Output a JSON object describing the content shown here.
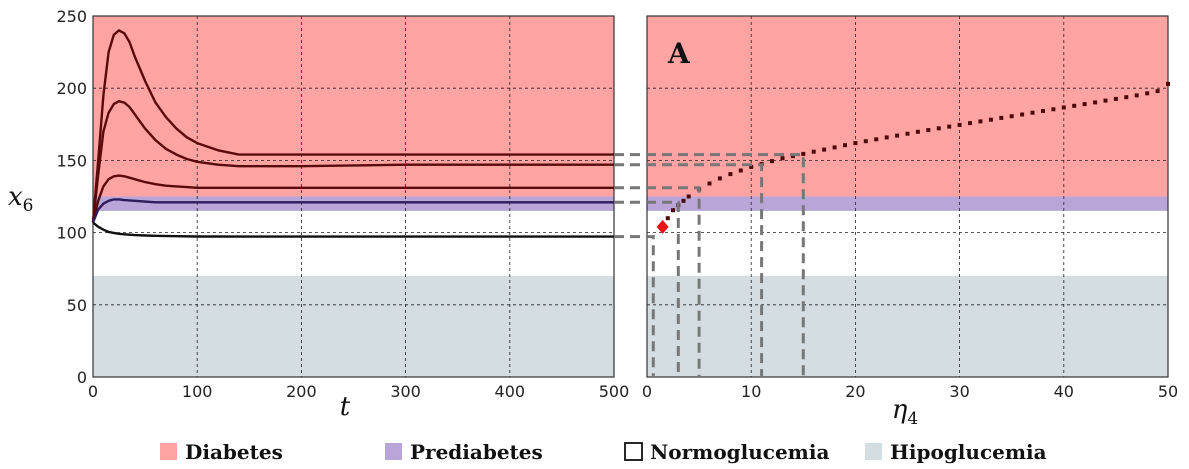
{
  "legend": [
    {
      "label": "Diabetes",
      "color": "#ffa3a3"
    },
    {
      "label": "Prediabetes",
      "color": "#b9a5d8"
    },
    {
      "label": "Normoglucemia",
      "color": "#ffffff"
    },
    {
      "label": "Hipoglucemia",
      "color": "#d3dde2"
    }
  ],
  "chart_data": [
    {
      "type": "line",
      "panel": "left",
      "xlabel": "t",
      "ylabel": "x6",
      "xlim": [
        0,
        500
      ],
      "ylim": [
        0,
        250
      ],
      "x_ticks": [
        0,
        100,
        200,
        300,
        400,
        500
      ],
      "y_ticks": [
        0,
        50,
        100,
        150,
        200,
        250
      ],
      "grid": true,
      "regions": [
        {
          "name": "Diabetes",
          "from": 125,
          "to": 250,
          "color": "#ffa3a3"
        },
        {
          "name": "Prediabetes",
          "from": 115,
          "to": 125,
          "color": "#b9a5d8"
        },
        {
          "name": "Normoglucemia",
          "from": 70,
          "to": 115,
          "color": "#ffffff"
        },
        {
          "name": "Hipoglucemia",
          "from": 0,
          "to": 70,
          "color": "#d3dde2"
        }
      ],
      "series": [
        {
          "color": "#5a0a0a",
          "x": [
            0,
            5,
            10,
            15,
            20,
            25,
            30,
            35,
            40,
            50,
            60,
            70,
            80,
            90,
            100,
            120,
            140,
            200,
            300,
            400,
            500
          ],
          "values": [
            107,
            150,
            195,
            225,
            237,
            240,
            238,
            232,
            222,
            205,
            190,
            180,
            172,
            166,
            162,
            157,
            154,
            154,
            154,
            154,
            154
          ]
        },
        {
          "color": "#5a0a0a",
          "x": [
            0,
            5,
            10,
            15,
            20,
            25,
            30,
            35,
            40,
            50,
            60,
            70,
            80,
            90,
            100,
            120,
            140,
            200,
            300,
            400,
            500
          ],
          "values": [
            107,
            140,
            170,
            183,
            189,
            191,
            190,
            187,
            182,
            172,
            164,
            158,
            154,
            151,
            149,
            147,
            146,
            146,
            147,
            147,
            147
          ]
        },
        {
          "color": "#5a0a0a",
          "x": [
            0,
            5,
            10,
            15,
            20,
            25,
            30,
            35,
            40,
            50,
            60,
            70,
            80,
            90,
            100,
            120,
            140,
            200,
            300,
            400,
            500
          ],
          "values": [
            107,
            122,
            132,
            137,
            139,
            139.5,
            139,
            138,
            137,
            135,
            133.5,
            132.5,
            132,
            131.5,
            131,
            131,
            131,
            131,
            131,
            131,
            131
          ]
        },
        {
          "color": "#2e1c5c",
          "x": [
            0,
            5,
            10,
            15,
            20,
            25,
            30,
            40,
            50,
            60,
            80,
            100,
            150,
            200,
            300,
            400,
            500
          ],
          "values": [
            107,
            116,
            120,
            122,
            123,
            123,
            122.5,
            122,
            121.5,
            121,
            121,
            121,
            121,
            121,
            121,
            121,
            121
          ]
        },
        {
          "color": "#111111",
          "x": [
            0,
            5,
            10,
            15,
            20,
            25,
            30,
            40,
            50,
            60,
            80,
            100,
            150,
            200,
            300,
            400,
            500
          ],
          "values": [
            107,
            104,
            102,
            100.5,
            99.8,
            99.2,
            98.8,
            98.3,
            98,
            97.8,
            97.5,
            97.3,
            97.2,
            97.2,
            97.2,
            97.2,
            97.2
          ]
        }
      ]
    },
    {
      "type": "scatter",
      "panel": "right",
      "panel_label": "A",
      "xlabel": "η4",
      "xlim": [
        0,
        50
      ],
      "ylim": [
        0,
        250
      ],
      "x_ticks": [
        0,
        10,
        20,
        30,
        40,
        50
      ],
      "y_ticks": [
        0,
        50,
        100,
        150,
        200,
        250
      ],
      "grid": true,
      "regions": [
        {
          "name": "Diabetes",
          "from": 125,
          "to": 250,
          "color": "#ffa3a3"
        },
        {
          "name": "Prediabetes",
          "from": 115,
          "to": 125,
          "color": "#b9a5d8"
        },
        {
          "name": "Normoglucemia",
          "from": 70,
          "to": 115,
          "color": "#ffffff"
        },
        {
          "name": "Hipoglucemia",
          "from": 0,
          "to": 70,
          "color": "#d3dde2"
        }
      ],
      "curve": {
        "color": "#4a0808",
        "x": [
          1.5,
          2,
          2.5,
          3,
          3.5,
          4,
          5,
          6,
          7,
          8,
          9,
          10,
          11,
          12,
          13,
          14,
          15,
          16,
          17,
          18,
          19,
          20,
          21,
          22,
          23,
          24,
          25,
          26,
          27,
          28,
          29,
          30,
          31,
          32,
          33,
          34,
          35,
          36,
          37,
          38,
          39,
          40,
          41,
          42,
          43,
          44,
          45,
          46,
          47,
          48,
          49,
          50
        ],
        "values": [
          104,
          110,
          115.5,
          119,
          122,
          125,
          130,
          134,
          137.5,
          140.5,
          143,
          145.5,
          147.5,
          149.5,
          151.5,
          153,
          154.5,
          156,
          157.5,
          159,
          160.5,
          162,
          163.3,
          164.6,
          165.9,
          167.2,
          168.5,
          169.8,
          171,
          172.2,
          173.4,
          174.6,
          175.8,
          177,
          178.2,
          179.4,
          180.6,
          181.8,
          183,
          184.2,
          185.4,
          186.6,
          187.8,
          189,
          190.2,
          191.4,
          192.6,
          193.8,
          195,
          196.5,
          198,
          203
        ]
      },
      "marker": {
        "x": 1.5,
        "value": 104,
        "color": "#ee1111",
        "shape": "diamond"
      },
      "guides": [
        {
          "x": 0.6,
          "value": 97.2
        },
        {
          "x": 3,
          "value": 121
        },
        {
          "x": 5,
          "value": 131
        },
        {
          "x": 11,
          "value": 147
        },
        {
          "x": 15,
          "value": 154
        }
      ]
    }
  ]
}
